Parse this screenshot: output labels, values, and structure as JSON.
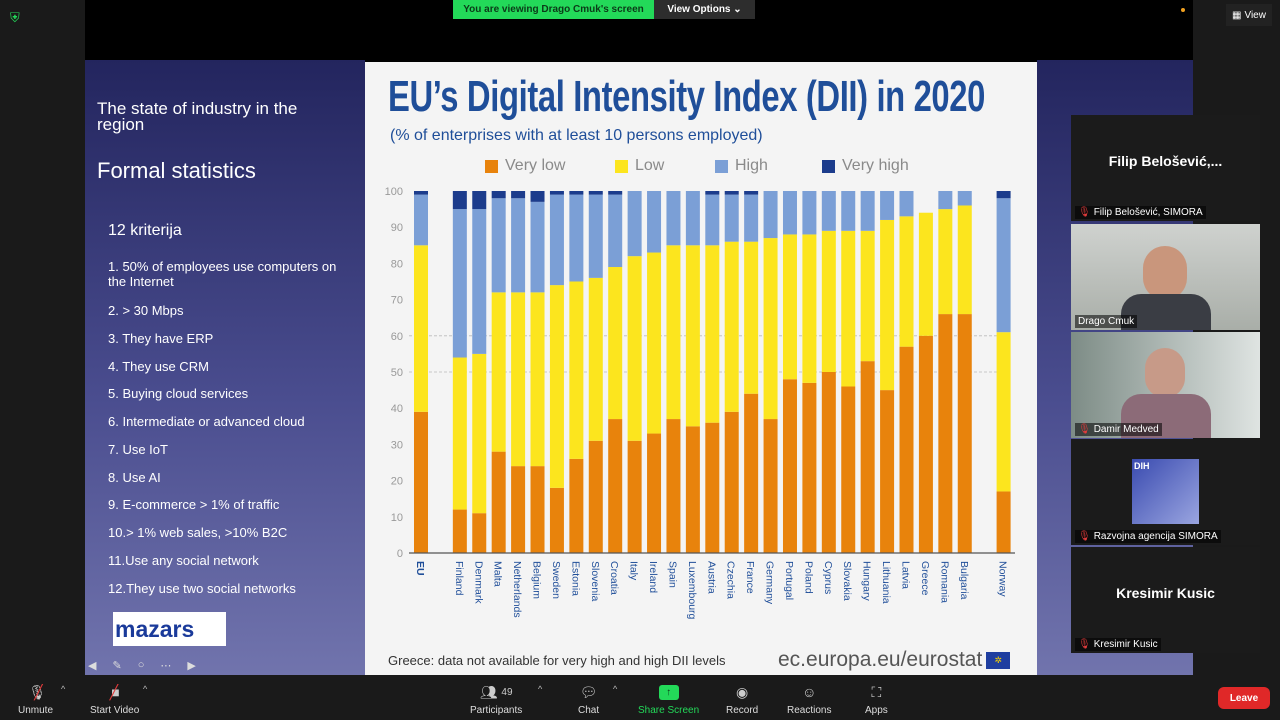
{
  "top_bar": {
    "banner_text": "You are viewing Drago Cmuk's screen",
    "view_options": "View Options",
    "view_button": "View"
  },
  "slide": {
    "heading": "The state of industry in the region",
    "subheading": "Formal statistics",
    "criteria_title": "12 kriterija",
    "criteria": [
      "1. 50% of employees use computers on the Internet",
      "2. > 30 Mbps",
      "3. They have ERP",
      "4. They use CRM",
      "5. Buying cloud services",
      "6. Intermediate or advanced cloud",
      "7. Use IoT",
      "8. Use AI",
      "9. E-commerce > 1% of traffic",
      "10.> 1% web sales, >10% B2C",
      "11.Use any social network",
      "12.They use two social networks"
    ],
    "logo_text": "mazars"
  },
  "chart_data": {
    "type": "bar",
    "stacked": true,
    "title": "EU’s Digital Intensity Index (DII) in 2020",
    "subtitle": "(% of enterprises with at least 10 persons employed)",
    "ylim": [
      0,
      100
    ],
    "yticks": [
      0,
      10,
      20,
      30,
      40,
      50,
      60,
      70,
      80,
      90,
      100
    ],
    "legend_position": "top",
    "categories": [
      "EU",
      "Finland",
      "Denmark",
      "Malta",
      "Netherlands",
      "Belgium",
      "Sweden",
      "Estonia",
      "Slovenia",
      "Croatia",
      "Italy",
      "Ireland",
      "Spain",
      "Luxembourg",
      "Austria",
      "Czechia",
      "France",
      "Germany",
      "Portugal",
      "Poland",
      "Cyprus",
      "Slovakia",
      "Hungary",
      "Lithuania",
      "Latvia",
      "Greece",
      "Romania",
      "Bulgaria",
      "Norway"
    ],
    "series": [
      {
        "name": "Very low",
        "color": "#e8830c",
        "values": [
          39,
          12,
          11,
          28,
          24,
          24,
          18,
          26,
          31,
          37,
          31,
          33,
          37,
          35,
          36,
          39,
          44,
          37,
          48,
          47,
          50,
          46,
          53,
          45,
          57,
          60,
          66,
          66,
          17
        ]
      },
      {
        "name": "Low",
        "color": "#fce51e",
        "values": [
          46,
          42,
          44,
          44,
          48,
          48,
          56,
          49,
          45,
          42,
          51,
          50,
          48,
          50,
          49,
          47,
          42,
          50,
          40,
          41,
          39,
          43,
          36,
          47,
          36,
          34,
          29,
          30,
          44
        ]
      },
      {
        "name": "High",
        "color": "#7b9fd6",
        "values": [
          14,
          41,
          40,
          26,
          26,
          25,
          25,
          24,
          23,
          20,
          18,
          17,
          15,
          15,
          14,
          13,
          13,
          13,
          12,
          12,
          11,
          11,
          11,
          8,
          7,
          null,
          5,
          4,
          37
        ]
      },
      {
        "name": "Very high",
        "color": "#1c3c8c",
        "values": [
          1,
          5,
          5,
          2,
          2,
          3,
          1,
          1,
          1,
          1,
          0,
          0,
          0,
          0,
          1,
          1,
          1,
          0,
          0,
          0,
          0,
          0,
          0,
          0,
          0,
          null,
          0,
          0,
          2
        ]
      }
    ],
    "footnote": "Greece: data not available for very high and high DII levels",
    "source": "ec.europa.eu/eurostat"
  },
  "participants": [
    {
      "name": "Filip Belošević, SIMORA",
      "display": "Filip  Belošević,...",
      "video": false,
      "muted": true
    },
    {
      "name": "Drago Cmuk",
      "video": true,
      "muted": false
    },
    {
      "name": "Damir Medved",
      "video": true,
      "muted": true
    },
    {
      "name": "Razvojna agencija SIMORA",
      "video": false,
      "muted": true,
      "logo_text": "DIH"
    },
    {
      "name": "Kresimir Kusic",
      "display": "Kresimir Kusic",
      "video": false,
      "muted": true
    }
  ],
  "toolbar": {
    "unmute": "Unmute",
    "start_video": "Start Video",
    "participants": "Participants",
    "participants_count": "49",
    "chat": "Chat",
    "share_screen": "Share Screen",
    "record": "Record",
    "reactions": "Reactions",
    "apps": "Apps",
    "leave": "Leave"
  },
  "colors": {
    "share_green": "#23d959",
    "leave_red": "#e02828",
    "chart_title_blue": "#1f4e99"
  }
}
